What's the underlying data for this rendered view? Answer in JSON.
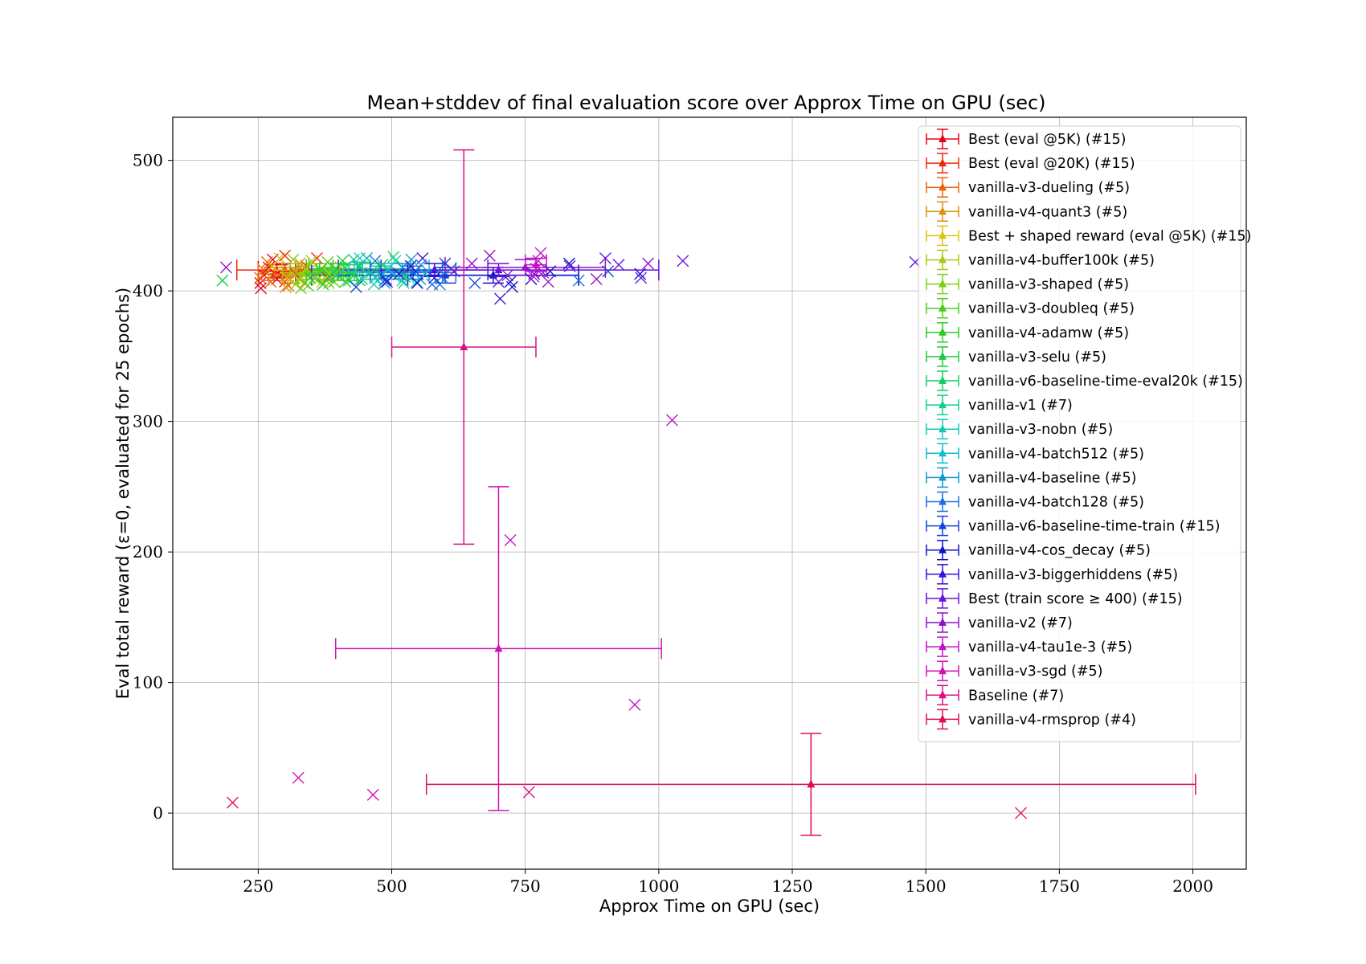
{
  "chart_data": {
    "type": "scatter",
    "title": "Mean+stddev of final evaluation score over Approx Time on GPU (sec)",
    "xlabel": "Approx Time on GPU (sec)",
    "ylabel": "Eval total reward (ε=0, evaluated for 25 epochs)",
    "xlim": [
      90,
      2100
    ],
    "ylim": [
      -43,
      533
    ],
    "xticks": [
      250,
      500,
      750,
      1000,
      1250,
      1500,
      1750,
      2000
    ],
    "yticks": [
      0,
      100,
      200,
      300,
      400,
      500
    ],
    "grid": true,
    "legend_position": "upper-right",
    "series": [
      {
        "name": "Best (eval @5K) (#15)",
        "color": "#e8001f",
        "mean": [
          285,
          415
        ],
        "xerr": 35,
        "yerr": 5
      },
      {
        "name": "Best (eval @20K) (#15)",
        "color": "#ec2a08",
        "mean": [
          300,
          416
        ],
        "xerr": 90,
        "yerr": 5
      },
      {
        "name": "vanilla-v3-dueling (#5)",
        "color": "#e8650a",
        "mean": [
          280,
          413
        ],
        "xerr": 30,
        "yerr": 5
      },
      {
        "name": "vanilla-v4-quant3 (#5)",
        "color": "#de8c0b",
        "mean": [
          310,
          412
        ],
        "xerr": 40,
        "yerr": 6
      },
      {
        "name": "Best + shaped reward (eval @5K) (#15)",
        "color": "#d8c40e",
        "mean": [
          330,
          416
        ],
        "xerr": 60,
        "yerr": 5
      },
      {
        "name": "vanilla-v4-buffer100k (#5)",
        "color": "#a6cc10",
        "mean": [
          340,
          414
        ],
        "xerr": 45,
        "yerr": 5
      },
      {
        "name": "vanilla-v3-shaped (#5)",
        "color": "#7bd014",
        "mean": [
          360,
          415
        ],
        "xerr": 50,
        "yerr": 6
      },
      {
        "name": "vanilla-v3-doubleq (#5)",
        "color": "#4fcc17",
        "mean": [
          380,
          413
        ],
        "xerr": 55,
        "yerr": 5
      },
      {
        "name": "vanilla-v4-adamw (#5)",
        "color": "#2dcc22",
        "mean": [
          400,
          416
        ],
        "xerr": 60,
        "yerr": 5
      },
      {
        "name": "vanilla-v3-selu (#5)",
        "color": "#19cc3d",
        "mean": [
          420,
          414
        ],
        "xerr": 55,
        "yerr": 6
      },
      {
        "name": "vanilla-v6-baseline-time-eval20k (#15)",
        "color": "#12cf66",
        "mean": [
          440,
          417
        ],
        "xerr": 95,
        "yerr": 5
      },
      {
        "name": "vanilla-v1 (#7)",
        "color": "#13cc90",
        "mean": [
          460,
          415
        ],
        "xerr": 70,
        "yerr": 6
      },
      {
        "name": "vanilla-v3-nobn (#5)",
        "color": "#12c9b5",
        "mean": [
          480,
          414
        ],
        "xerr": 60,
        "yerr": 5
      },
      {
        "name": "vanilla-v4-batch512 (#5)",
        "color": "#14bad1",
        "mean": [
          500,
          416
        ],
        "xerr": 70,
        "yerr": 5
      },
      {
        "name": "vanilla-v4-baseline (#5)",
        "color": "#1196d0",
        "mean": [
          520,
          415
        ],
        "xerr": 75,
        "yerr": 6
      },
      {
        "name": "vanilla-v4-batch128 (#5)",
        "color": "#1b6fe0",
        "mean": [
          540,
          414
        ],
        "xerr": 80,
        "yerr": 5
      },
      {
        "name": "vanilla-v6-baseline-time-train (#15)",
        "color": "#1243dc",
        "mean": [
          600,
          412
        ],
        "xerr": 250,
        "yerr": 6
      },
      {
        "name": "vanilla-v4-cos_decay (#5)",
        "color": "#0f13c8",
        "mean": [
          690,
          412
        ],
        "xerr": 160,
        "yerr": 6
      },
      {
        "name": "vanilla-v3-biggerhiddens (#5)",
        "color": "#3513d9",
        "mean": [
          580,
          416
        ],
        "xerr": 100,
        "yerr": 5
      },
      {
        "name": "Best (train score ≥ 400) (#15)",
        "color": "#6613dd",
        "mean": [
          700,
          416
        ],
        "xerr": 300,
        "yerr": 5
      },
      {
        "name": "vanilla-v2 (#7)",
        "color": "#8e12c8",
        "mean": [
          750,
          418
        ],
        "xerr": 150,
        "yerr": 6
      },
      {
        "name": "vanilla-v4-tau1e-3 (#5)",
        "color": "#c212c8",
        "mean": [
          770,
          420
        ],
        "xerr": 20,
        "yerr": 5
      },
      {
        "name": "vanilla-v3-sgd (#5)",
        "color": "#d012b0",
        "mean": [
          700,
          126
        ],
        "xerr": 305,
        "yerr": 124
      },
      {
        "name": "Baseline (#7)",
        "color": "#d81285",
        "mean": [
          635,
          357
        ],
        "xerr": 135,
        "yerr": 151
      },
      {
        "name": "vanilla-v4-rmsprop (#4)",
        "color": "#de0f55",
        "mean": [
          1285,
          22
        ],
        "xerr": 720,
        "yerr": 39
      }
    ],
    "markers": [
      {
        "series": 19,
        "x": 1480,
        "y": 422
      },
      {
        "series": 19,
        "x": 1045,
        "y": 423
      },
      {
        "series": 20,
        "x": 980,
        "y": 421
      },
      {
        "series": 19,
        "x": 925,
        "y": 420
      },
      {
        "series": 17,
        "x": 965,
        "y": 413
      },
      {
        "series": 16,
        "x": 905,
        "y": 415
      },
      {
        "series": 15,
        "x": 850,
        "y": 408
      },
      {
        "series": 20,
        "x": 793,
        "y": 407
      },
      {
        "series": 18,
        "x": 703,
        "y": 394
      },
      {
        "series": 17,
        "x": 722,
        "y": 407
      },
      {
        "series": 21,
        "x": 1025,
        "y": 301
      },
      {
        "series": 21,
        "x": 722,
        "y": 209
      },
      {
        "series": 21,
        "x": 955,
        "y": 83
      },
      {
        "series": 22,
        "x": 325,
        "y": 27
      },
      {
        "series": 22,
        "x": 465,
        "y": 14
      },
      {
        "series": 23,
        "x": 757,
        "y": 16
      },
      {
        "series": 24,
        "x": 202,
        "y": 8
      },
      {
        "series": 24,
        "x": 1678,
        "y": 0
      },
      {
        "series": 0,
        "x": 255,
        "y": 402
      },
      {
        "series": 1,
        "x": 300,
        "y": 427
      },
      {
        "series": 20,
        "x": 190,
        "y": 418
      },
      {
        "series": 9,
        "x": 183,
        "y": 408
      },
      {
        "series": 12,
        "x": 440,
        "y": 425
      },
      {
        "series": 6,
        "x": 330,
        "y": 402
      },
      {
        "series": 15,
        "x": 590,
        "y": 405
      },
      {
        "series": 14,
        "x": 555,
        "y": 420
      }
    ]
  }
}
